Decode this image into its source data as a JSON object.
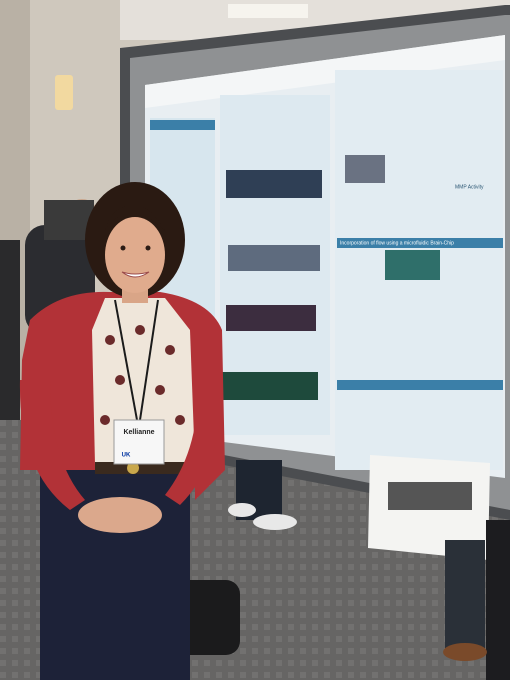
{
  "badge": {
    "name": "Kellianne",
    "logo": "UK"
  },
  "poster": {
    "sections": [
      "MMP Activity",
      "Incorporation of flow using a microfluidic Brain-Chip"
    ]
  }
}
